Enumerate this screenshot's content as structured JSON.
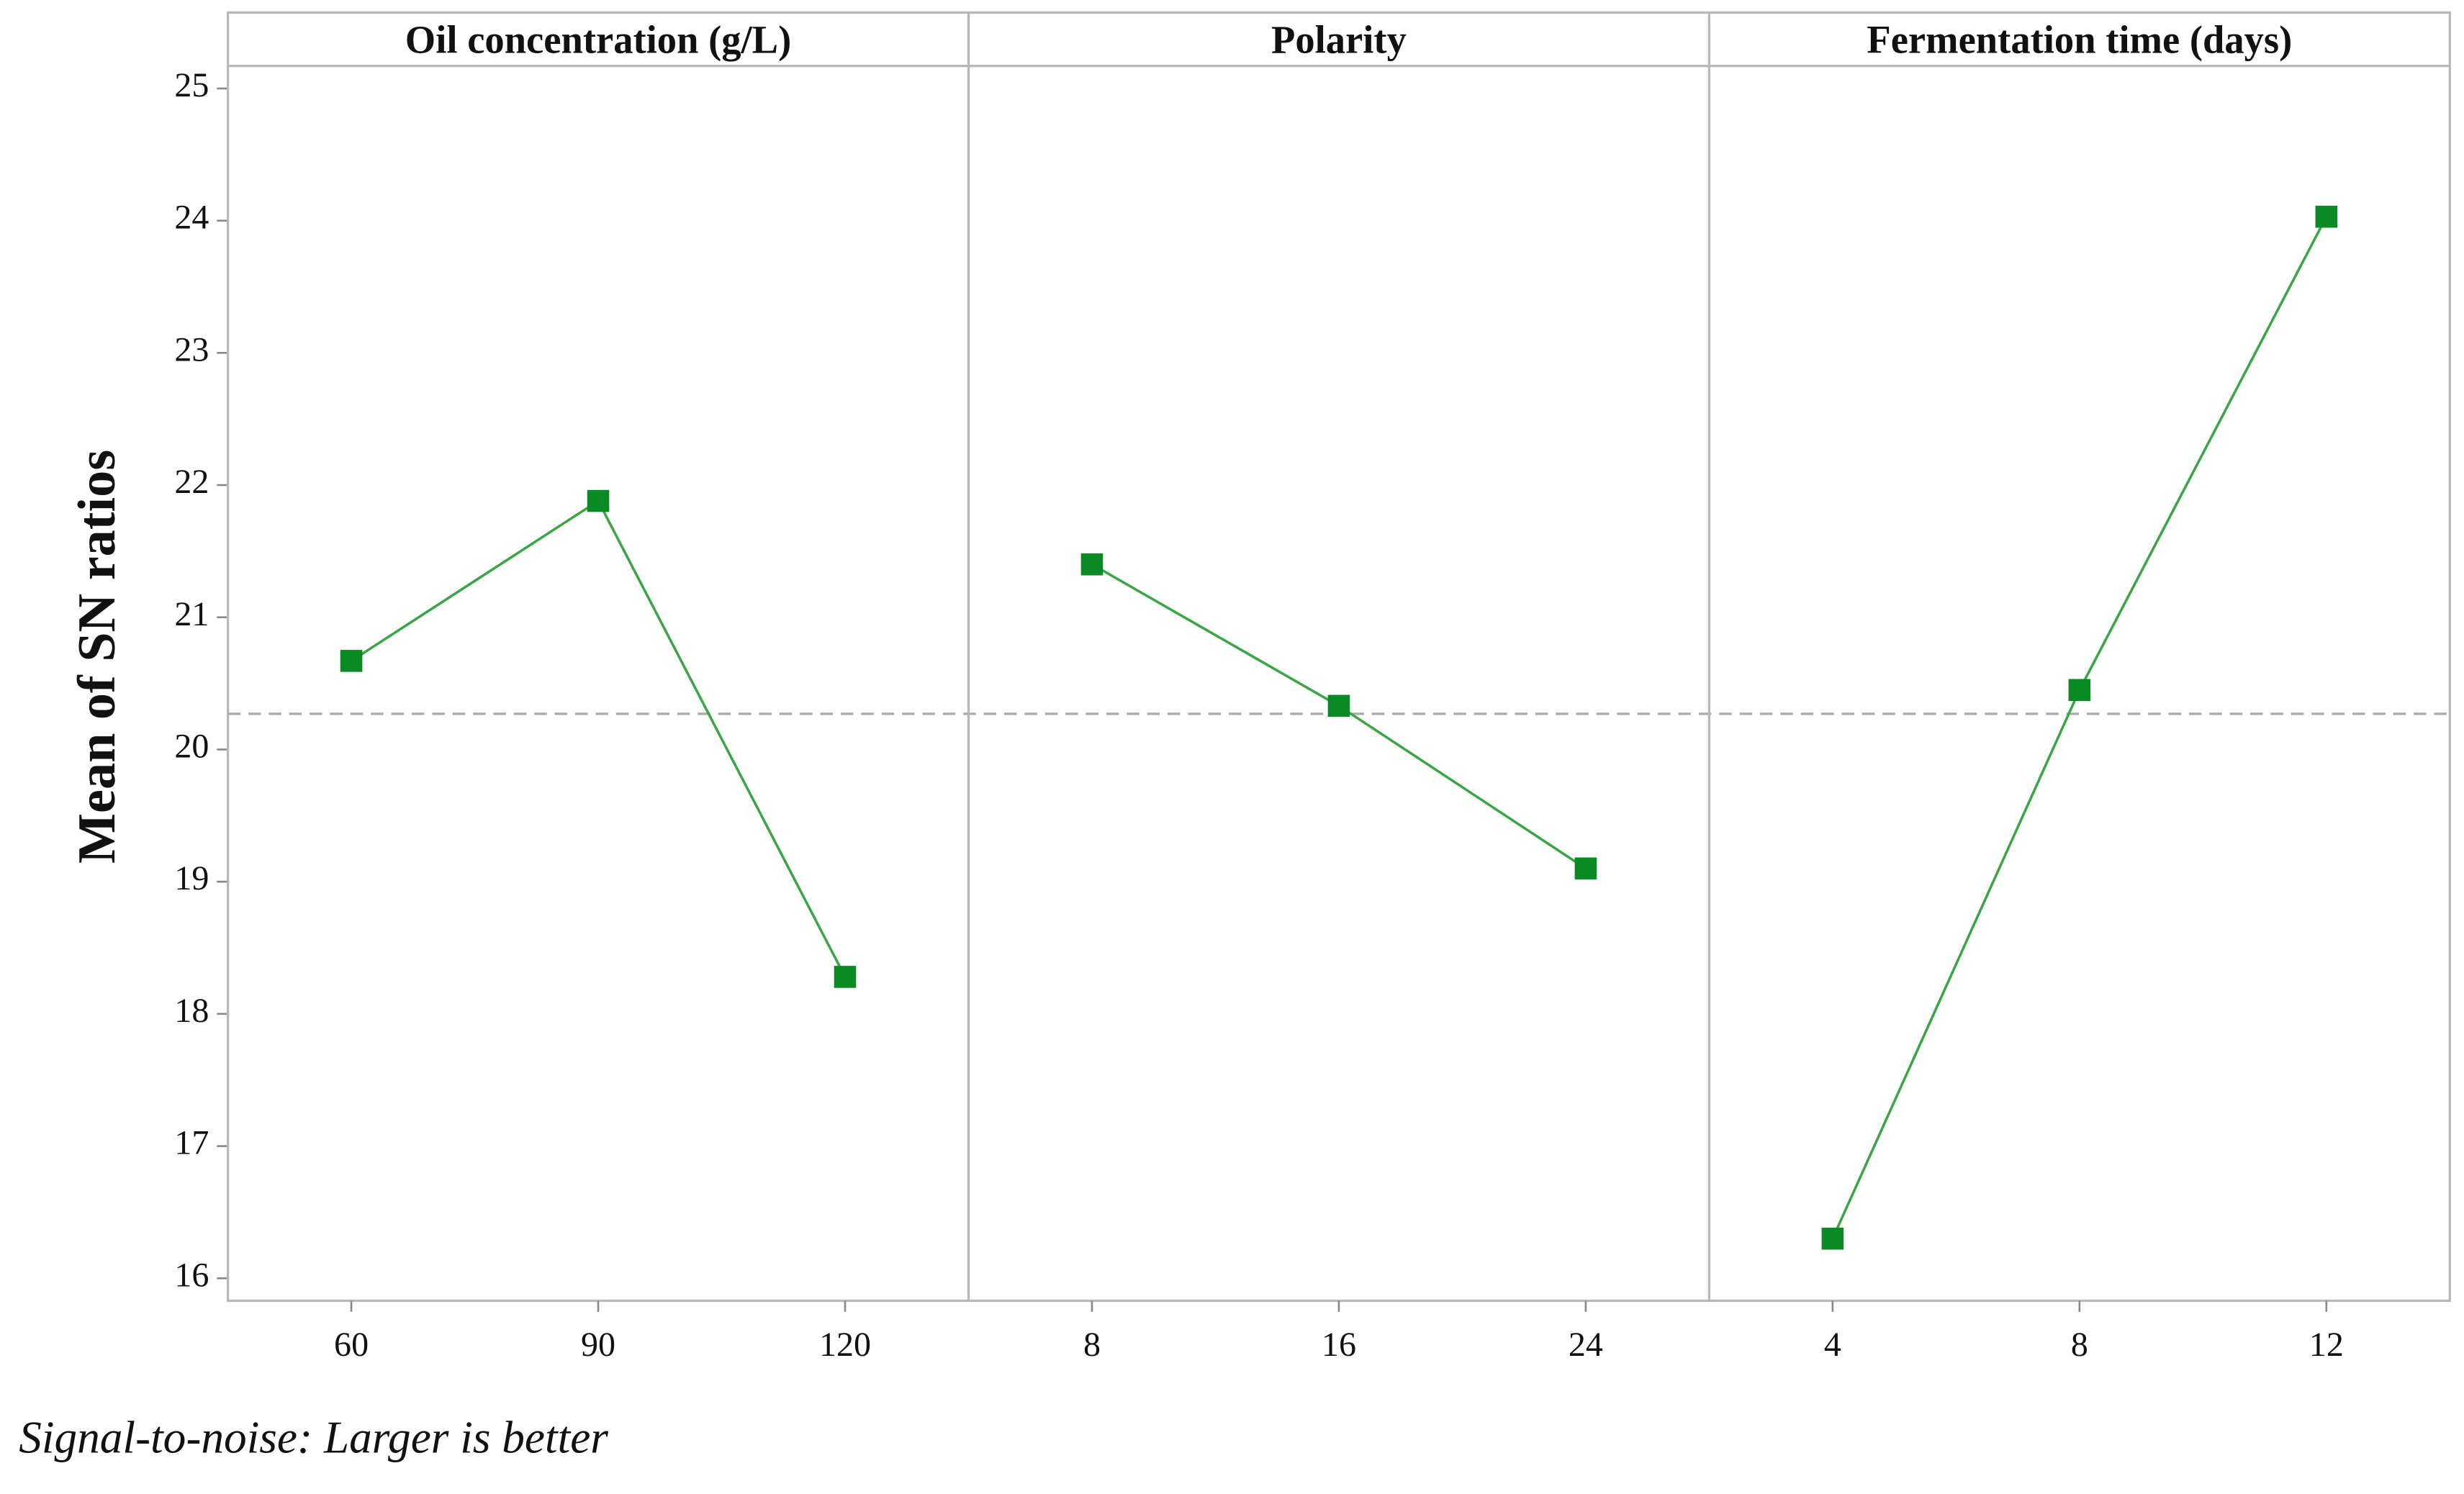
{
  "chart_data": {
    "type": "line",
    "y_label": "Mean of SN ratios",
    "note": "Signal-to-noise: Larger is better",
    "ylim": [
      15.83,
      25.17
    ],
    "yticks": [
      16,
      17,
      18,
      19,
      20,
      21,
      22,
      23,
      24,
      25
    ],
    "reference_line": 20.27,
    "color": "#0a8a25",
    "panels": [
      {
        "title": "Oil concentration (g/L)",
        "categories": [
          "60",
          "90",
          "120"
        ],
        "values": [
          20.67,
          21.88,
          18.28
        ]
      },
      {
        "title": "Polarity",
        "categories": [
          "8",
          "16",
          "24"
        ],
        "values": [
          21.4,
          20.33,
          19.1
        ]
      },
      {
        "title": "Fermentation time (days)",
        "categories": [
          "4",
          "8",
          "12"
        ],
        "values": [
          16.3,
          20.45,
          24.03
        ]
      }
    ]
  }
}
